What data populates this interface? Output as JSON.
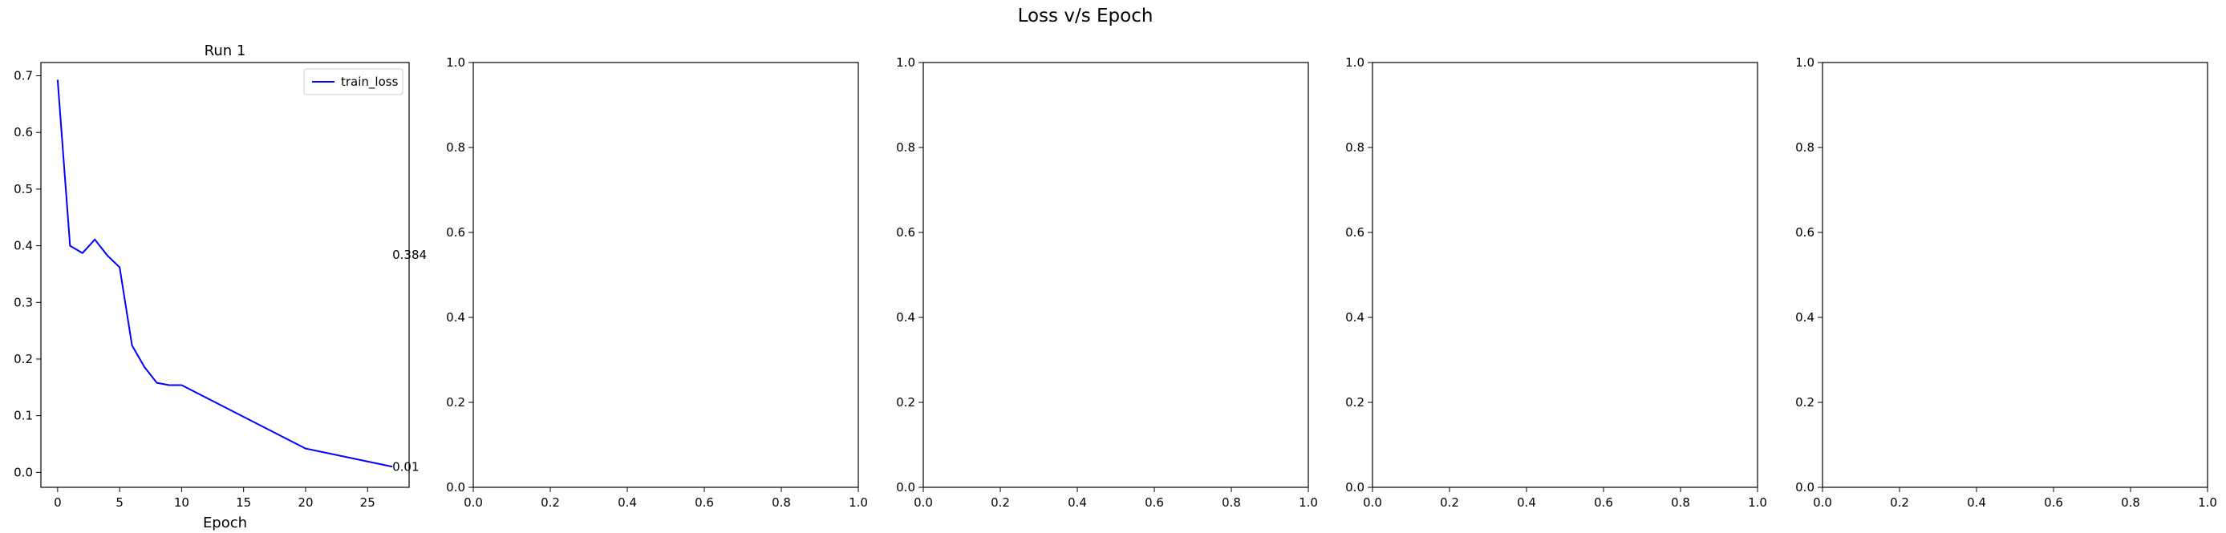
{
  "figure": {
    "suptitle": "Loss v/s Epoch"
  },
  "colors": {
    "line": "#0000ff",
    "axes": "#000000",
    "background": "#ffffff",
    "legend_border": "#cccccc"
  },
  "chart_data": [
    {
      "type": "line",
      "title": "Run 1",
      "xlabel": "Epoch",
      "ylabel": "",
      "xlim": [
        -1.35,
        28.35
      ],
      "ylim": [
        -0.0264,
        0.7234
      ],
      "xticks": [
        0,
        5,
        10,
        15,
        20,
        25
      ],
      "xtick_labels": [
        "0",
        "5",
        "10",
        "15",
        "20",
        "25"
      ],
      "yticks": [
        0.0,
        0.1,
        0.2,
        0.3,
        0.4,
        0.5,
        0.6,
        0.7
      ],
      "ytick_labels": [
        "0.0",
        "0.1",
        "0.2",
        "0.3",
        "0.4",
        "0.5",
        "0.6",
        "0.7"
      ],
      "legend": "upper right",
      "grid": false,
      "series": [
        {
          "name": "train_loss",
          "color": "#0000ff",
          "x": [
            0,
            1,
            2,
            3,
            4,
            5,
            6,
            7,
            8,
            9,
            10,
            20,
            27
          ],
          "y": [
            0.693,
            0.4,
            0.387,
            0.411,
            0.383,
            0.362,
            0.224,
            0.186,
            0.158,
            0.154,
            0.154,
            0.042,
            0.01
          ]
        }
      ],
      "annotations": [
        {
          "text": "0.384",
          "x": 27,
          "y": 0.384
        },
        {
          "text": "0.01",
          "x": 27,
          "y": 0.01
        }
      ]
    },
    {
      "type": "line",
      "title": "",
      "xlabel": "",
      "ylabel": "",
      "xlim": [
        0,
        1
      ],
      "ylim": [
        0,
        1
      ],
      "xticks": [
        0.0,
        0.2,
        0.4,
        0.6,
        0.8,
        1.0
      ],
      "xtick_labels": [
        "0.0",
        "0.2",
        "0.4",
        "0.6",
        "0.8",
        "1.0"
      ],
      "yticks": [
        0.0,
        0.2,
        0.4,
        0.6,
        0.8,
        1.0
      ],
      "ytick_labels": [
        "0.0",
        "0.2",
        "0.4",
        "0.6",
        "0.8",
        "1.0"
      ],
      "series": [],
      "annotations": []
    },
    {
      "type": "line",
      "title": "",
      "xlabel": "",
      "ylabel": "",
      "xlim": [
        0,
        1
      ],
      "ylim": [
        0,
        1
      ],
      "xticks": [
        0.0,
        0.2,
        0.4,
        0.6,
        0.8,
        1.0
      ],
      "xtick_labels": [
        "0.0",
        "0.2",
        "0.4",
        "0.6",
        "0.8",
        "1.0"
      ],
      "yticks": [
        0.0,
        0.2,
        0.4,
        0.6,
        0.8,
        1.0
      ],
      "ytick_labels": [
        "0.0",
        "0.2",
        "0.4",
        "0.6",
        "0.8",
        "1.0"
      ],
      "series": [],
      "annotations": []
    },
    {
      "type": "line",
      "title": "",
      "xlabel": "",
      "ylabel": "",
      "xlim": [
        0,
        1
      ],
      "ylim": [
        0,
        1
      ],
      "xticks": [
        0.0,
        0.2,
        0.4,
        0.6,
        0.8,
        1.0
      ],
      "xtick_labels": [
        "0.0",
        "0.2",
        "0.4",
        "0.6",
        "0.8",
        "1.0"
      ],
      "yticks": [
        0.0,
        0.2,
        0.4,
        0.6,
        0.8,
        1.0
      ],
      "ytick_labels": [
        "0.0",
        "0.2",
        "0.4",
        "0.6",
        "0.8",
        "1.0"
      ],
      "series": [],
      "annotations": []
    },
    {
      "type": "line",
      "title": "",
      "xlabel": "",
      "ylabel": "",
      "xlim": [
        0,
        1
      ],
      "ylim": [
        0,
        1
      ],
      "xticks": [
        0.0,
        0.2,
        0.4,
        0.6,
        0.8,
        1.0
      ],
      "xtick_labels": [
        "0.0",
        "0.2",
        "0.4",
        "0.6",
        "0.8",
        "1.0"
      ],
      "yticks": [
        0.0,
        0.2,
        0.4,
        0.6,
        0.8,
        1.0
      ],
      "ytick_labels": [
        "0.0",
        "0.2",
        "0.4",
        "0.6",
        "0.8",
        "1.0"
      ],
      "series": [],
      "annotations": []
    }
  ]
}
